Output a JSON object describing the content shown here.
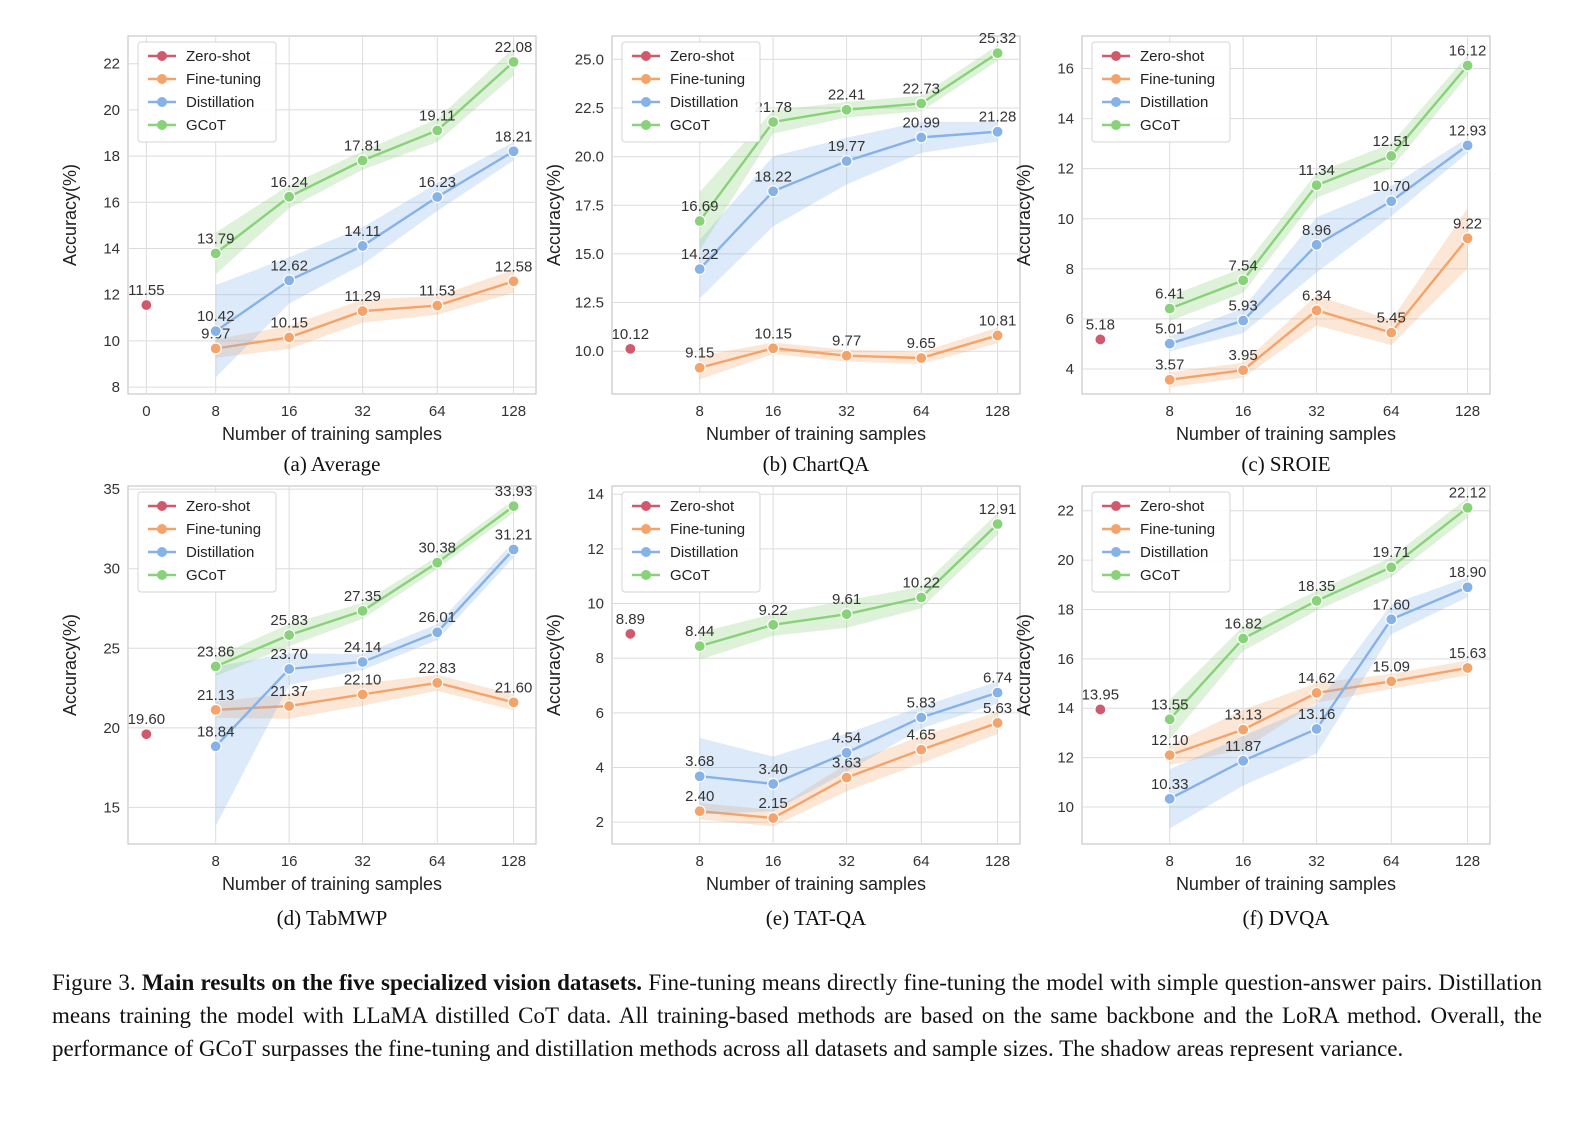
{
  "colors": {
    "zero_shot": "#d0596e",
    "fine_tuning": "#f4a46b",
    "distillation": "#86b2e8",
    "gcot": "#88d279",
    "grid": "#dcdcdc",
    "frame": "#c8c8c8"
  },
  "figure_caption": {
    "label": "Figure 3.",
    "title": "Main results on the five specialized vision datasets.",
    "body": "Fine-tuning means directly fine-tuning the model with simple question-answer pairs. Distillation means training the model with LLaMA distilled CoT data. All training-based methods are based on the same backbone and the LoRA method. Overall, the performance of GCoT surpasses the fine-tuning and distillation methods across all datasets and sample sizes. The shadow areas represent variance."
  },
  "chart_data": [
    {
      "type": "line",
      "caption": "(a) Average",
      "xlabel": "Number of training samples",
      "ylabel": "Accuracy(%)",
      "x_categories": [
        "8",
        "16",
        "32",
        "64",
        "128"
      ],
      "zero_shot_tick": "0",
      "ylim": [
        7.7,
        23.2
      ],
      "yticks": [
        8,
        10,
        12,
        14,
        16,
        18,
        20,
        22
      ],
      "legend": "top-left",
      "zero_shot": 11.55,
      "series": [
        {
          "name": "Zero-shot",
          "key": "zero_shot"
        },
        {
          "name": "Fine-tuning",
          "key": "fine_tuning",
          "values": [
            9.67,
            10.15,
            11.29,
            11.53,
            12.58
          ],
          "band_halfwidth": [
            0.4,
            0.5,
            0.5,
            0.4,
            0.5
          ]
        },
        {
          "name": "Distillation",
          "key": "distillation",
          "values": [
            10.42,
            12.62,
            14.11,
            16.23,
            18.21
          ],
          "band_halfwidth": [
            2.0,
            1.0,
            0.8,
            0.6,
            0.4
          ]
        },
        {
          "name": "GCoT",
          "key": "gcot",
          "values": [
            13.79,
            16.24,
            17.81,
            19.11,
            22.08
          ],
          "band_halfwidth": [
            0.9,
            0.5,
            0.4,
            0.5,
            0.6
          ]
        }
      ]
    },
    {
      "type": "line",
      "caption": "(b) ChartQA",
      "xlabel": "Number of training samples",
      "ylabel": "Accuracy(%)",
      "x_categories": [
        "8",
        "16",
        "32",
        "64",
        "128"
      ],
      "zero_shot_tick": "",
      "ylim": [
        7.8,
        26.2
      ],
      "yticks": [
        10.0,
        12.5,
        15.0,
        17.5,
        20.0,
        22.5,
        25.0
      ],
      "tick_decimals": 1,
      "legend": "top-left",
      "zero_shot": 10.12,
      "series": [
        {
          "name": "Zero-shot",
          "key": "zero_shot"
        },
        {
          "name": "Fine-tuning",
          "key": "fine_tuning",
          "values": [
            9.15,
            10.15,
            9.77,
            9.65,
            10.81
          ],
          "band_halfwidth": [
            0.6,
            0.3,
            0.3,
            0.3,
            0.4
          ]
        },
        {
          "name": "Distillation",
          "key": "distillation",
          "values": [
            14.22,
            18.22,
            19.77,
            20.99,
            21.28
          ],
          "band_halfwidth": [
            1.5,
            1.8,
            1.2,
            0.8,
            0.5
          ]
        },
        {
          "name": "GCoT",
          "key": "gcot",
          "values": [
            16.69,
            21.78,
            22.41,
            22.73,
            25.32
          ],
          "band_halfwidth": [
            1.5,
            0.6,
            0.4,
            0.4,
            0.4
          ]
        }
      ]
    },
    {
      "type": "line",
      "caption": "(c) SROIE",
      "xlabel": "Number of training samples",
      "ylabel": "Accuracy(%)",
      "x_categories": [
        "8",
        "16",
        "32",
        "64",
        "128"
      ],
      "zero_shot_tick": "",
      "ylim": [
        3.0,
        17.3
      ],
      "yticks": [
        4,
        6,
        8,
        10,
        12,
        14,
        16
      ],
      "legend": "top-left",
      "zero_shot": 5.18,
      "series": [
        {
          "name": "Zero-shot",
          "key": "zero_shot"
        },
        {
          "name": "Fine-tuning",
          "key": "fine_tuning",
          "values": [
            3.57,
            3.95,
            6.34,
            5.45,
            9.22
          ],
          "band_halfwidth": [
            0.3,
            0.3,
            0.6,
            0.5,
            1.2
          ]
        },
        {
          "name": "Distillation",
          "key": "distillation",
          "values": [
            5.01,
            5.93,
            8.96,
            10.7,
            12.93
          ],
          "band_halfwidth": [
            0.3,
            0.5,
            1.1,
            0.6,
            0.3
          ]
        },
        {
          "name": "GCoT",
          "key": "gcot",
          "values": [
            6.41,
            7.54,
            11.34,
            12.51,
            16.12
          ],
          "band_halfwidth": [
            0.5,
            0.5,
            0.5,
            0.5,
            0.4
          ]
        }
      ]
    },
    {
      "type": "line",
      "caption": "(d) TabMWP",
      "xlabel": "Number of training samples",
      "ylabel": "Accuracy(%)",
      "x_categories": [
        "8",
        "16",
        "32",
        "64",
        "128"
      ],
      "zero_shot_tick": "",
      "ylim": [
        12.7,
        35.2
      ],
      "yticks": [
        15,
        20,
        25,
        30,
        35
      ],
      "legend": "top-left",
      "zero_shot": 19.6,
      "series": [
        {
          "name": "Zero-shot",
          "key": "zero_shot"
        },
        {
          "name": "Fine-tuning",
          "key": "fine_tuning",
          "values": [
            21.13,
            21.37,
            22.1,
            22.83,
            21.6
          ],
          "band_halfwidth": [
            0.5,
            0.8,
            0.7,
            0.5,
            0.5
          ]
        },
        {
          "name": "Distillation",
          "key": "distillation",
          "values": [
            18.84,
            23.7,
            24.14,
            26.01,
            31.21
          ],
          "band_halfwidth": [
            5.0,
            1.0,
            0.5,
            0.5,
            0.5
          ]
        },
        {
          "name": "GCoT",
          "key": "gcot",
          "values": [
            23.86,
            25.83,
            27.35,
            30.38,
            33.93
          ],
          "band_halfwidth": [
            0.6,
            0.7,
            0.5,
            0.4,
            0.4
          ]
        }
      ]
    },
    {
      "type": "line",
      "caption": "(e) TAT-QA",
      "xlabel": "Number of training samples",
      "ylabel": "Accuracy(%)",
      "x_categories": [
        "8",
        "16",
        "32",
        "64",
        "128"
      ],
      "zero_shot_tick": "",
      "ylim": [
        1.2,
        14.3
      ],
      "yticks": [
        2,
        4,
        6,
        8,
        10,
        12,
        14
      ],
      "legend": "top-left",
      "zero_shot": 8.89,
      "series": [
        {
          "name": "Zero-shot",
          "key": "zero_shot"
        },
        {
          "name": "Fine-tuning",
          "key": "fine_tuning",
          "values": [
            2.4,
            2.15,
            3.63,
            4.65,
            5.63
          ],
          "band_halfwidth": [
            0.3,
            0.3,
            0.5,
            0.5,
            0.4
          ]
        },
        {
          "name": "Distillation",
          "key": "distillation",
          "values": [
            3.68,
            3.4,
            4.54,
            5.83,
            6.74
          ],
          "band_halfwidth": [
            1.4,
            1.0,
            0.7,
            0.4,
            0.4
          ]
        },
        {
          "name": "GCoT",
          "key": "gcot",
          "values": [
            8.44,
            9.22,
            9.61,
            10.22,
            12.91
          ],
          "band_halfwidth": [
            0.5,
            0.4,
            0.5,
            0.4,
            0.4
          ]
        }
      ]
    },
    {
      "type": "line",
      "caption": "(f) DVQA",
      "xlabel": "Number of training samples",
      "ylabel": "Accuracy(%)",
      "x_categories": [
        "8",
        "16",
        "32",
        "64",
        "128"
      ],
      "zero_shot_tick": "",
      "ylim": [
        8.5,
        23.0
      ],
      "yticks": [
        10,
        12,
        14,
        16,
        18,
        20,
        22
      ],
      "legend": "top-left",
      "zero_shot": 13.95,
      "series": [
        {
          "name": "Zero-shot",
          "key": "zero_shot"
        },
        {
          "name": "Fine-tuning",
          "key": "fine_tuning",
          "values": [
            12.1,
            13.13,
            14.62,
            15.09,
            15.63
          ],
          "band_halfwidth": [
            0.4,
            0.8,
            0.4,
            0.3,
            0.3
          ]
        },
        {
          "name": "Distillation",
          "key": "distillation",
          "values": [
            10.33,
            11.87,
            13.16,
            17.6,
            18.9
          ],
          "band_halfwidth": [
            1.2,
            1.0,
            1.0,
            0.6,
            0.4
          ]
        },
        {
          "name": "GCoT",
          "key": "gcot",
          "values": [
            13.55,
            16.82,
            18.35,
            19.71,
            22.12
          ],
          "band_halfwidth": [
            0.8,
            0.5,
            0.4,
            0.4,
            0.4
          ]
        }
      ]
    }
  ]
}
